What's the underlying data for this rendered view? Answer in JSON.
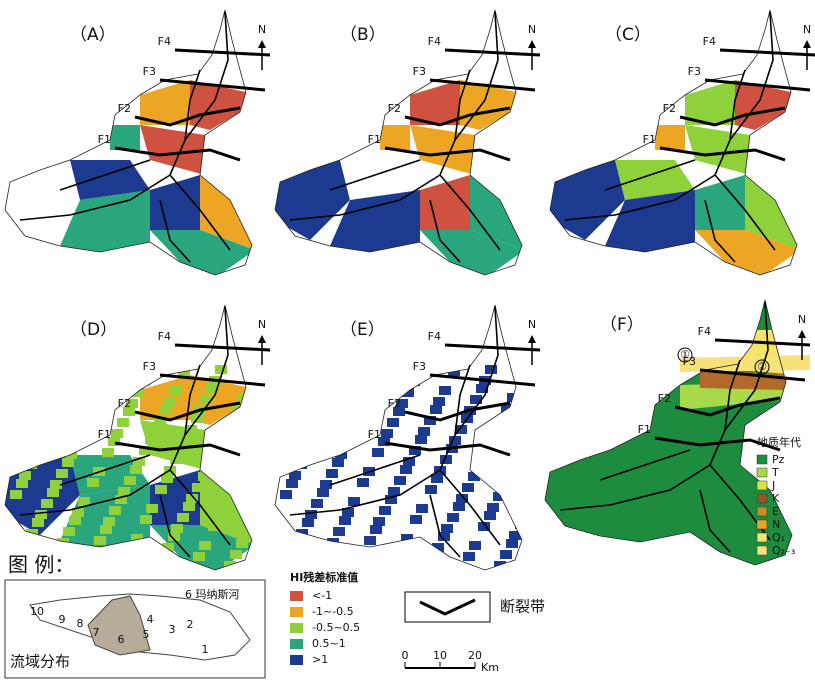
{
  "panels": [
    {
      "label": "（A）",
      "faults": [
        "F4",
        "F3",
        "F2",
        "F1"
      ]
    },
    {
      "label": "（B）",
      "faults": [
        "F4",
        "F3",
        "F2",
        "F1"
      ]
    },
    {
      "label": "（C）",
      "faults": [
        "F4",
        "F3",
        "F2",
        "F1"
      ]
    },
    {
      "label": "（D）",
      "faults": [
        "F4",
        "F3",
        "F2",
        "F1"
      ]
    },
    {
      "label": "（E）",
      "faults": [
        "F4",
        "F3",
        "F2",
        "F1"
      ]
    },
    {
      "label": "（F）",
      "faults": [
        "F4",
        "F3",
        "F2",
        "F1"
      ]
    }
  ],
  "north": "N",
  "panel_f": {
    "circles": [
      "①",
      "②"
    ],
    "legend_title": "地质年代",
    "legend": [
      "Pz",
      "T",
      "J",
      "K",
      "E",
      "N",
      "Q₁",
      "Q₂₋₃"
    ]
  },
  "legend": {
    "title": "图 例：",
    "basin_caption": "流域分布",
    "river_label": "6 玛纳斯河",
    "basin_numbers": [
      "1",
      "2",
      "3",
      "4",
      "5",
      "6",
      "7",
      "8",
      "9",
      "10"
    ]
  },
  "hi_legend": {
    "title": "HI残差标准值",
    "items": [
      "<-1",
      "-1~-0.5",
      "-0.5~0.5",
      "0.5~1",
      ">1"
    ]
  },
  "fault_legend": "断裂带",
  "scale": {
    "ticks": [
      0,
      10,
      20
    ],
    "unit": "Km"
  }
}
